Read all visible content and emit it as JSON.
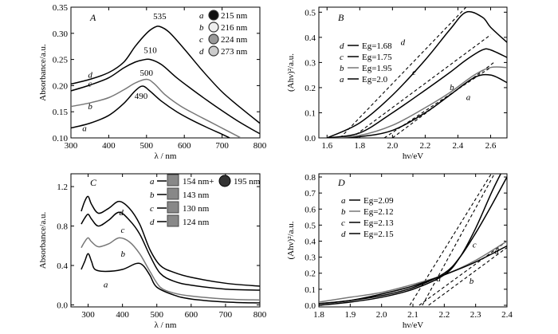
{
  "chart_data": [
    {
      "panel": "A",
      "type": "line",
      "xlabel": "λ / nm",
      "ylabel": "Absorbance/a.u.",
      "xlim": [
        300,
        800
      ],
      "ylim": [
        0.1,
        0.35
      ],
      "xticks": [
        "300",
        "400",
        "500",
        "600",
        "700",
        "800"
      ],
      "yticks": [
        "0.10",
        "0.15",
        "0.20",
        "0.25",
        "0.30",
        "0.35"
      ],
      "peak_labels": [
        "535",
        "510",
        "500",
        "490"
      ],
      "legend": [
        {
          "letter": "a",
          "text": "215 nm"
        },
        {
          "letter": "b",
          "text": "216 nm"
        },
        {
          "letter": "c",
          "text": "224 nm"
        },
        {
          "letter": "d",
          "text": "273 nm"
        }
      ],
      "series": [
        {
          "name": "a",
          "color": "#000000",
          "x": [
            300,
            350,
            400,
            440,
            470,
            490,
            510,
            540,
            580,
            620,
            660,
            700,
            720
          ],
          "y": [
            0.119,
            0.128,
            0.143,
            0.166,
            0.19,
            0.199,
            0.189,
            0.17,
            0.15,
            0.134,
            0.12,
            0.107,
            0.1
          ]
        },
        {
          "name": "b",
          "color": "#777777",
          "x": [
            300,
            350,
            400,
            440,
            470,
            500,
            520,
            550,
            590,
            630,
            670,
            710,
            750
          ],
          "y": [
            0.16,
            0.167,
            0.177,
            0.192,
            0.205,
            0.212,
            0.204,
            0.182,
            0.161,
            0.145,
            0.13,
            0.115,
            0.1
          ]
        },
        {
          "name": "c",
          "color": "#000000",
          "x": [
            300,
            350,
            400,
            440,
            470,
            490,
            510,
            540,
            580,
            620,
            660,
            700,
            740,
            780,
            800
          ],
          "y": [
            0.19,
            0.201,
            0.215,
            0.234,
            0.245,
            0.249,
            0.25,
            0.24,
            0.215,
            0.193,
            0.172,
            0.152,
            0.133,
            0.116,
            0.108
          ]
        },
        {
          "name": "d",
          "color": "#000000",
          "x": [
            300,
            350,
            400,
            440,
            470,
            500,
            520,
            535,
            560,
            600,
            650,
            700,
            750,
            800
          ],
          "y": [
            0.203,
            0.212,
            0.225,
            0.245,
            0.275,
            0.3,
            0.311,
            0.313,
            0.302,
            0.27,
            0.227,
            0.188,
            0.157,
            0.128
          ]
        }
      ]
    },
    {
      "panel": "B",
      "type": "line",
      "xlabel": "hν/eV",
      "ylabel": "(Ahν)²/a.u.",
      "xlim": [
        1.55,
        2.7
      ],
      "ylim": [
        0,
        0.52
      ],
      "xticks": [
        "1.6",
        "1.8",
        "2.0",
        "2.2",
        "2.4",
        "2.6"
      ],
      "yticks": [
        "0.0",
        "0.1",
        "0.2",
        "0.3",
        "0.4",
        "0.5"
      ],
      "legend": [
        {
          "letter": "d",
          "text": "Eg=1.68"
        },
        {
          "letter": "c",
          "text": "Eg=1.75"
        },
        {
          "letter": "b",
          "text": "Eg=1.95"
        },
        {
          "letter": "a",
          "text": "Eg=2.0"
        }
      ],
      "series": [
        {
          "name": "a",
          "color": "#000000",
          "x": [
            1.6,
            1.8,
            2.0,
            2.2,
            2.35,
            2.5,
            2.6,
            2.7
          ],
          "y": [
            0.0,
            0.005,
            0.03,
            0.1,
            0.17,
            0.24,
            0.25,
            0.22
          ]
        },
        {
          "name": "b",
          "color": "#777777",
          "x": [
            1.6,
            1.8,
            2.0,
            2.2,
            2.35,
            2.5,
            2.6,
            2.7
          ],
          "y": [
            0.0,
            0.01,
            0.05,
            0.12,
            0.18,
            0.25,
            0.28,
            0.28
          ]
        },
        {
          "name": "c",
          "color": "#000000",
          "x": [
            1.6,
            1.8,
            2.0,
            2.2,
            2.35,
            2.45,
            2.55,
            2.6,
            2.7
          ],
          "y": [
            0.0,
            0.02,
            0.1,
            0.19,
            0.26,
            0.31,
            0.35,
            0.35,
            0.32
          ]
        },
        {
          "name": "d",
          "color": "#000000",
          "x": [
            1.6,
            1.8,
            2.0,
            2.2,
            2.35,
            2.45,
            2.55,
            2.6,
            2.7
          ],
          "y": [
            0.0,
            0.06,
            0.17,
            0.31,
            0.43,
            0.5,
            0.48,
            0.44,
            0.38
          ]
        }
      ],
      "fits": [
        {
          "name": "a",
          "x": [
            2.0,
            2.62
          ],
          "y": [
            0.0,
            0.3
          ]
        },
        {
          "name": "b",
          "x": [
            1.95,
            2.6
          ],
          "y": [
            0.0,
            0.28
          ]
        },
        {
          "name": "c",
          "x": [
            1.75,
            2.6
          ],
          "y": [
            0.0,
            0.41
          ]
        },
        {
          "name": "d",
          "x": [
            1.68,
            2.45
          ],
          "y": [
            0.0,
            0.52
          ]
        }
      ]
    },
    {
      "panel": "C",
      "type": "line",
      "xlabel": "λ / nm",
      "ylabel": "Absorbance/a.u.",
      "xlim": [
        250,
        800
      ],
      "ylim": [
        -0.02,
        1.33
      ],
      "xticks": [
        "300",
        "400",
        "500",
        "600",
        "700",
        "800"
      ],
      "yticks": [
        "0.0",
        "0.4",
        "0.8",
        "1.2"
      ],
      "legend": [
        {
          "letter": "a",
          "text": "154 nm+",
          "extra": "195 nm"
        },
        {
          "letter": "b",
          "text": "143 nm"
        },
        {
          "letter": "c",
          "text": "130 nm"
        },
        {
          "letter": "d",
          "text": "124 nm"
        }
      ],
      "series": [
        {
          "name": "a",
          "color": "#000000",
          "x": [
            280,
            290,
            300,
            310,
            320,
            350,
            400,
            440,
            460,
            480,
            500,
            550,
            600,
            700,
            800
          ],
          "y": [
            0.36,
            0.44,
            0.52,
            0.44,
            0.36,
            0.34,
            0.36,
            0.42,
            0.4,
            0.3,
            0.18,
            0.1,
            0.06,
            0.03,
            0.02
          ]
        },
        {
          "name": "b",
          "color": "#777777",
          "x": [
            280,
            290,
            300,
            310,
            330,
            360,
            390,
            420,
            450,
            480,
            510,
            550,
            600,
            700,
            800
          ],
          "y": [
            0.58,
            0.64,
            0.68,
            0.64,
            0.59,
            0.62,
            0.68,
            0.64,
            0.52,
            0.34,
            0.18,
            0.12,
            0.09,
            0.06,
            0.05
          ]
        },
        {
          "name": "c",
          "color": "#000000",
          "x": [
            280,
            290,
            300,
            310,
            330,
            360,
            390,
            420,
            450,
            480,
            510,
            550,
            600,
            700,
            800
          ],
          "y": [
            0.82,
            0.88,
            0.92,
            0.87,
            0.8,
            0.86,
            0.94,
            0.86,
            0.72,
            0.5,
            0.32,
            0.24,
            0.2,
            0.16,
            0.15
          ]
        },
        {
          "name": "d",
          "color": "#000000",
          "x": [
            280,
            290,
            300,
            310,
            330,
            360,
            390,
            420,
            450,
            480,
            510,
            550,
            600,
            700,
            800
          ],
          "y": [
            0.95,
            1.05,
            1.1,
            1.02,
            0.93,
            0.98,
            1.05,
            0.98,
            0.82,
            0.56,
            0.4,
            0.33,
            0.28,
            0.22,
            0.19
          ]
        }
      ]
    },
    {
      "panel": "D",
      "type": "line",
      "xlabel": "hν/eV",
      "ylabel": "(Ahν)²/a.u.",
      "xlim": [
        1.8,
        2.4
      ],
      "ylim": [
        -0.01,
        0.82
      ],
      "xticks": [
        "1.8",
        "1.9",
        "2.0",
        "2.1",
        "2.2",
        "2.3",
        "2.4"
      ],
      "yticks": [
        "0.0",
        "0.1",
        "0.2",
        "0.3",
        "0.4",
        "0.5",
        "0.6",
        "0.7",
        "0.8"
      ],
      "legend": [
        {
          "letter": "a",
          "text": "Eg=2.09"
        },
        {
          "letter": "b",
          "text": "Eg=2.12"
        },
        {
          "letter": "c",
          "text": "Eg=2.13"
        },
        {
          "letter": "d",
          "text": "Eg=2.15"
        }
      ],
      "series": [
        {
          "name": "a",
          "color": "#000000",
          "x": [
            1.8,
            1.9,
            2.0,
            2.1,
            2.2,
            2.25,
            2.3,
            2.35,
            2.4
          ],
          "y": [
            0.01,
            0.03,
            0.06,
            0.11,
            0.2,
            0.3,
            0.45,
            0.62,
            0.8
          ]
        },
        {
          "name": "b",
          "color": "#777777",
          "x": [
            1.8,
            1.9,
            2.0,
            2.1,
            2.2,
            2.3,
            2.4
          ],
          "y": [
            0.02,
            0.05,
            0.08,
            0.13,
            0.19,
            0.28,
            0.4
          ]
        },
        {
          "name": "c",
          "color": "#000000",
          "x": [
            1.8,
            1.9,
            2.0,
            2.1,
            2.2,
            2.25,
            2.3,
            2.35,
            2.38
          ],
          "y": [
            0.0,
            0.02,
            0.05,
            0.1,
            0.19,
            0.3,
            0.48,
            0.7,
            0.82
          ]
        },
        {
          "name": "d",
          "color": "#000000",
          "x": [
            1.8,
            1.9,
            2.0,
            2.1,
            2.2,
            2.3,
            2.4
          ],
          "y": [
            0.01,
            0.03,
            0.07,
            0.12,
            0.19,
            0.27,
            0.37
          ]
        }
      ],
      "fits": [
        {
          "name": "a",
          "x": [
            2.09,
            2.35
          ],
          "y": [
            0.0,
            0.82
          ]
        },
        {
          "name": "b",
          "x": [
            2.12,
            2.4
          ],
          "y": [
            0.0,
            0.4
          ]
        },
        {
          "name": "c",
          "x": [
            2.13,
            2.36
          ],
          "y": [
            0.0,
            0.82
          ]
        },
        {
          "name": "d",
          "x": [
            2.15,
            2.4
          ],
          "y": [
            0.0,
            0.36
          ]
        }
      ]
    }
  ]
}
